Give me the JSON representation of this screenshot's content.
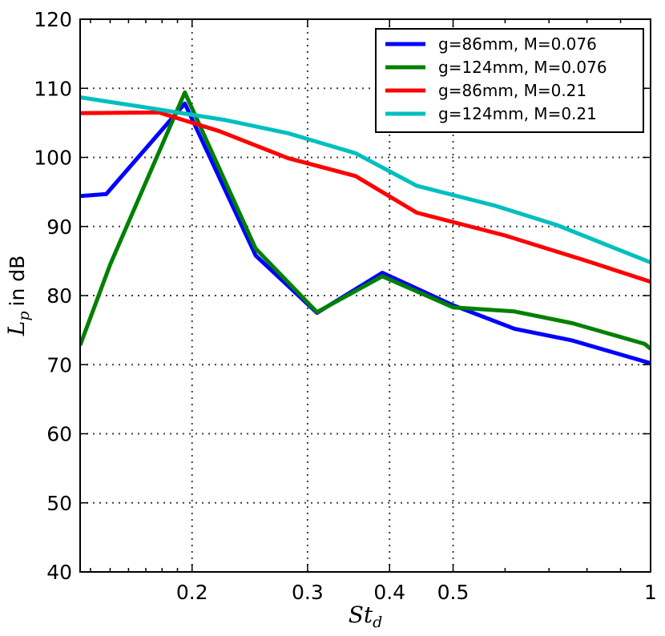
{
  "chart_data": {
    "type": "line",
    "title": "",
    "xlabel": "St",
    "xlabel_sub": "d",
    "ylabel_var": "L",
    "ylabel_sub": "p",
    "ylabel_suffix": "in dB",
    "xscale": "log",
    "xlim": [
      0.135,
      1.0
    ],
    "ylim": [
      40,
      120
    ],
    "grid": true,
    "legend_position": "top-right",
    "xticks": [
      {
        "value": 0.2,
        "label": "0.2"
      },
      {
        "value": 0.3,
        "label": "0.3"
      },
      {
        "value": 0.4,
        "label": "0.4"
      },
      {
        "value": 0.5,
        "label": "0.5"
      },
      {
        "value": 1.0,
        "label": "1"
      }
    ],
    "yticks": [
      {
        "value": 40,
        "label": "40"
      },
      {
        "value": 50,
        "label": "50"
      },
      {
        "value": 60,
        "label": "60"
      },
      {
        "value": 70,
        "label": "70"
      },
      {
        "value": 80,
        "label": "80"
      },
      {
        "value": 90,
        "label": "90"
      },
      {
        "value": 100,
        "label": "100"
      },
      {
        "value": 110,
        "label": "110"
      },
      {
        "value": 120,
        "label": "120"
      }
    ],
    "series": [
      {
        "name": "g=86mm, M=0.076",
        "color": "#0000ff",
        "points": [
          [
            0.135,
            94.4
          ],
          [
            0.148,
            94.7
          ],
          [
            0.195,
            107.8
          ],
          [
            0.25,
            85.8
          ],
          [
            0.31,
            77.5
          ],
          [
            0.39,
            83.3
          ],
          [
            0.5,
            78.6
          ],
          [
            0.62,
            75.2
          ],
          [
            0.76,
            73.5
          ],
          [
            1.0,
            70.2
          ]
        ]
      },
      {
        "name": "g=124mm, M=0.076",
        "color": "#008000",
        "points": [
          [
            0.135,
            72.8
          ],
          [
            0.15,
            84.5
          ],
          [
            0.195,
            109.4
          ],
          [
            0.25,
            86.8
          ],
          [
            0.31,
            77.6
          ],
          [
            0.39,
            82.8
          ],
          [
            0.5,
            78.3
          ],
          [
            0.62,
            77.7
          ],
          [
            0.76,
            76.0
          ],
          [
            0.98,
            73.0
          ],
          [
            1.0,
            72.3
          ]
        ]
      },
      {
        "name": "g=86mm, M=0.21",
        "color": "#ff0000",
        "points": [
          [
            0.135,
            106.4
          ],
          [
            0.178,
            106.5
          ],
          [
            0.22,
            103.8
          ],
          [
            0.28,
            99.9
          ],
          [
            0.355,
            97.3
          ],
          [
            0.44,
            92.0
          ],
          [
            0.6,
            88.7
          ],
          [
            0.8,
            85.0
          ],
          [
            1.0,
            82.0
          ]
        ]
      },
      {
        "name": "g=124mm, M=0.21",
        "color": "#00bfbf",
        "points": [
          [
            0.135,
            108.7
          ],
          [
            0.168,
            107.3
          ],
          [
            0.225,
            105.4
          ],
          [
            0.28,
            103.5
          ],
          [
            0.355,
            100.6
          ],
          [
            0.44,
            95.9
          ],
          [
            0.58,
            93.0
          ],
          [
            0.72,
            90.2
          ],
          [
            1.0,
            84.8
          ]
        ]
      }
    ]
  }
}
